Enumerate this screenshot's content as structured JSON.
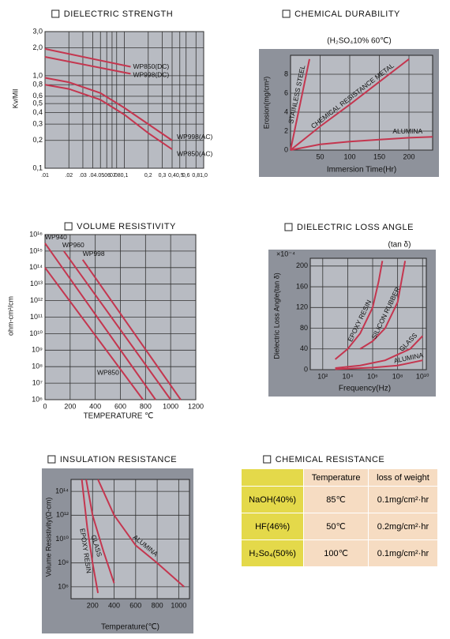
{
  "chart_data": [
    {
      "type": "line",
      "title": "DIELECTRIC STRENGTH",
      "y_label": "Kv/Mil",
      "xlog": true,
      "ylog": true,
      "xlim": [
        0.01,
        1.0
      ],
      "ylim": [
        0.1,
        3.0
      ],
      "xticks": [
        {
          "value": 0.01,
          "label": ".01"
        },
        {
          "value": 0.02,
          "label": ".02"
        },
        {
          "value": 0.03,
          "label": ".03"
        },
        {
          "value": 0.04,
          "label": ".04"
        },
        {
          "value": 0.05,
          "label": ".05"
        },
        {
          "value": 0.06,
          "label": ".06"
        },
        {
          "value": 0.07,
          "label": ".07"
        },
        {
          "value": 0.08,
          "label": ".08"
        },
        {
          "value": 0.1,
          "label": "0,1"
        },
        {
          "value": 0.2,
          "label": "0,2"
        },
        {
          "value": 0.3,
          "label": "0,3"
        },
        {
          "value": 0.4,
          "label": "0,4"
        },
        {
          "value": 0.5,
          "label": "0,5"
        },
        {
          "value": 0.6,
          "label": "0,6"
        },
        {
          "value": 0.8,
          "label": "0,8"
        },
        {
          "value": 1.0,
          "label": "1,0"
        }
      ],
      "yticks": [
        {
          "value": 0.1,
          "label": "0,1"
        },
        {
          "value": 0.2,
          "label": "0,2"
        },
        {
          "value": 0.3,
          "label": "0,3"
        },
        {
          "value": 0.4,
          "label": "0,4"
        },
        {
          "value": 0.5,
          "label": "0,5"
        },
        {
          "value": 0.6,
          "label": "0,6"
        },
        {
          "value": 0.8,
          "label": "0,8"
        },
        {
          "value": 1.0,
          "label": "1,0"
        },
        {
          "value": 2.0,
          "label": "2,0"
        },
        {
          "value": 3.0,
          "label": "3,0"
        }
      ],
      "series": [
        {
          "name": "WP850(DC)",
          "color": "#c4364f",
          "x": [
            0.01,
            0.12
          ],
          "values": [
            1.95,
            1.25
          ]
        },
        {
          "name": "WP998(DC)",
          "color": "#c4364f",
          "x": [
            0.01,
            0.12
          ],
          "values": [
            1.6,
            1.05
          ]
        },
        {
          "name": "WP998(AC)",
          "color": "#c4364f",
          "x": [
            0.01,
            0.02,
            0.05,
            0.1,
            0.2,
            0.4
          ],
          "values": [
            0.95,
            0.85,
            0.65,
            0.45,
            0.3,
            0.2
          ]
        },
        {
          "name": "WP850(AC)",
          "color": "#c4364f",
          "x": [
            0.01,
            0.02,
            0.05,
            0.1,
            0.2,
            0.4
          ],
          "values": [
            0.8,
            0.72,
            0.55,
            0.38,
            0.24,
            0.16
          ]
        }
      ]
    },
    {
      "type": "line",
      "title": "CHEMICAL DURABILITY",
      "subtitle": "(H₂SO₄10% 60℃)",
      "x_label": "Immersion Time(Hr)",
      "y_label": "Erosion(mg/cm²)",
      "xlim": [
        0,
        240
      ],
      "ylim": [
        0,
        10
      ],
      "xticks": [
        50,
        100,
        150,
        200
      ],
      "yticks": [
        0,
        2,
        4,
        6,
        8
      ],
      "series": [
        {
          "name": "STAINLESS STEEL",
          "color": "#c4364f",
          "x": [
            0,
            32
          ],
          "values": [
            0,
            9.6
          ]
        },
        {
          "name": "CHEMICAL RESISTANCE METAL",
          "color": "#c4364f",
          "x": [
            0,
            50,
            100,
            150,
            200
          ],
          "values": [
            0,
            2.5,
            4.8,
            7.2,
            9.6
          ]
        },
        {
          "name": "ALUMINA",
          "color": "#c4364f",
          "x": [
            0,
            50,
            100,
            150,
            200,
            240
          ],
          "values": [
            0,
            0.6,
            0.9,
            1.1,
            1.3,
            1.4
          ]
        }
      ]
    },
    {
      "type": "line",
      "title": "VOLUME RESISTIVITY",
      "x_label": "TEMPERATURE ℃",
      "y_label": "ohm-cm²/cm",
      "ylog": true,
      "xlim": [
        0,
        1200
      ],
      "ylim": [
        1000000.0,
        1e+16
      ],
      "xticks": [
        0,
        200,
        400,
        600,
        800,
        1000,
        1200
      ],
      "yticks": [
        {
          "value": 1000000.0,
          "label": "10⁶"
        },
        {
          "value": 10000000.0,
          "label": "10⁷"
        },
        {
          "value": 100000000.0,
          "label": "10⁸"
        },
        {
          "value": 1000000000.0,
          "label": "10⁹"
        },
        {
          "value": 10000000000.0,
          "label": "10¹⁰"
        },
        {
          "value": 100000000000.0,
          "label": "10¹¹"
        },
        {
          "value": 1000000000000.0,
          "label": "10¹²"
        },
        {
          "value": 10000000000000.0,
          "label": "10¹³"
        },
        {
          "value": 100000000000000.0,
          "label": "10¹⁴"
        },
        {
          "value": 1000000000000000.0,
          "label": "10¹⁵"
        },
        {
          "value": 1e+16,
          "label": "10¹⁶"
        }
      ],
      "series": [
        {
          "name": "WP940",
          "color": "#c4364f",
          "x": [
            0,
            880
          ],
          "values": [
            3000000000000000.0,
            1000000.0
          ]
        },
        {
          "name": "WP960",
          "color": "#c4364f",
          "x": [
            150,
            1000
          ],
          "values": [
            1000000000000000.0,
            1000000.0
          ]
        },
        {
          "name": "WP998",
          "color": "#c4364f",
          "x": [
            300,
            1080
          ],
          "values": [
            300000000000000.0,
            1000000.0
          ]
        },
        {
          "name": "WP850",
          "color": "#c4364f",
          "x": [
            0,
            780
          ],
          "values": [
            100000000000000.0,
            1000000.0
          ]
        }
      ]
    },
    {
      "type": "line",
      "title": "DIELECTRIC LOSS ANGLE",
      "subtitle": "(tan δ)",
      "y_unit": "×10⁻⁴",
      "x_label": "Frequency(Hz)",
      "y_label": "Dielectric Loss Angle(tan δ)",
      "xlog": true,
      "xlim": [
        10,
        20000000000.0
      ],
      "ylim": [
        0,
        215
      ],
      "xticks": [
        {
          "value": 100,
          "label": "10²"
        },
        {
          "value": 10000.0,
          "label": "10⁴"
        },
        {
          "value": 1000000.0,
          "label": "10⁶"
        },
        {
          "value": 100000000.0,
          "label": "10⁸"
        },
        {
          "value": 10000000000.0,
          "label": "10¹⁰"
        }
      ],
      "yticks": [
        0,
        40,
        80,
        120,
        160,
        200
      ],
      "series": [
        {
          "name": "EPOXY RESIN",
          "color": "#c4364f",
          "x": [
            1000,
            10000.0,
            100000.0,
            1000000.0,
            3000000.0,
            6000000.0
          ],
          "values": [
            20,
            40,
            70,
            120,
            170,
            210
          ]
        },
        {
          "name": "SILICON RUBBER",
          "color": "#c4364f",
          "x": [
            100000.0,
            1000000.0,
            10000000.0,
            100000000.0,
            200000000.0,
            400000000.0
          ],
          "values": [
            40,
            55,
            80,
            130,
            170,
            210
          ]
        },
        {
          "name": "GLASS",
          "color": "#c4364f",
          "x": [
            1000,
            100000.0,
            10000000.0,
            1000000000.0,
            10000000000.0
          ],
          "values": [
            3,
            8,
            18,
            40,
            65
          ]
        },
        {
          "name": "ALUMINA",
          "color": "#c4364f",
          "x": [
            1000,
            1000000.0,
            100000000.0,
            10000000000.0
          ],
          "values": [
            1,
            4,
            8,
            18
          ]
        }
      ]
    },
    {
      "type": "line",
      "title": "INSULATION RESISTANCE",
      "x_label": "Temperature(℃)",
      "y_label": "Volume Resistivity(Ω-cm)",
      "ylog": true,
      "xlim": [
        0,
        1100
      ],
      "ylim": [
        100000.0,
        1000000000000000.0
      ],
      "xticks": [
        200,
        400,
        600,
        800,
        1000
      ],
      "yticks": [
        {
          "value": 1000000.0,
          "label": "10⁶"
        },
        {
          "value": 100000000.0,
          "label": "10⁸"
        },
        {
          "value": 10000000000.0,
          "label": "10¹⁰"
        },
        {
          "value": 1000000000000.0,
          "label": "10¹²"
        },
        {
          "value": 100000000000000.0,
          "label": "10¹⁴"
        }
      ],
      "series": [
        {
          "name": "EPOXY RESIN",
          "color": "#c4364f",
          "x": [
            100,
            150,
            200,
            250
          ],
          "values": [
            1000000000000000.0,
            100000000000.0,
            100000000.0,
            300000.0
          ]
        },
        {
          "name": "GLASS",
          "color": "#c4364f",
          "x": [
            140,
            200,
            300,
            400
          ],
          "values": [
            1000000000000000.0,
            1000000000000.0,
            1000000000.0,
            2000000.0
          ]
        },
        {
          "name": "ALUMINA",
          "color": "#c4364f",
          "x": [
            250,
            400,
            600,
            800,
            1050
          ],
          "values": [
            1000000000000000.0,
            1000000000000.0,
            3000000000.0,
            100000000.0,
            1000000.0
          ]
        }
      ]
    }
  ],
  "table": {
    "title": "CHEMICAL RESISTANCE",
    "header": [
      "Temperature",
      "loss of weight"
    ],
    "rows": [
      [
        "NaOH(40%)",
        "85℃",
        "0.1mg/cm²·hr"
      ],
      [
        "HF(46%)",
        "50℃",
        "0.2mg/cm²·hr"
      ],
      [
        "H₂So₄(50%)",
        "100℃",
        "0.1mg/cm²·hr"
      ]
    ]
  }
}
